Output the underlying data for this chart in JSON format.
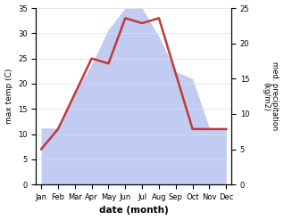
{
  "months": [
    "Jan",
    "Feb",
    "Mar",
    "Apr",
    "May",
    "Jun",
    "Jul",
    "Aug",
    "Sep",
    "Oct",
    "Nov",
    "Dec"
  ],
  "temp": [
    7,
    11,
    18,
    25,
    24,
    33,
    32,
    33,
    22,
    11,
    11,
    11
  ],
  "precip": [
    8,
    8,
    13,
    17,
    22,
    25,
    25,
    21,
    16,
    15,
    8,
    8
  ],
  "temp_color": "#c0393b",
  "precip_fill_color": "#b8c4f0",
  "ylabel_left": "max temp (C)",
  "ylabel_right": "med. precipitation\n(kg/m2)",
  "xlabel": "date (month)",
  "ylim_left": [
    0,
    35
  ],
  "ylim_right": [
    0,
    25
  ],
  "background_color": "#ffffff",
  "temp_linewidth": 1.8
}
